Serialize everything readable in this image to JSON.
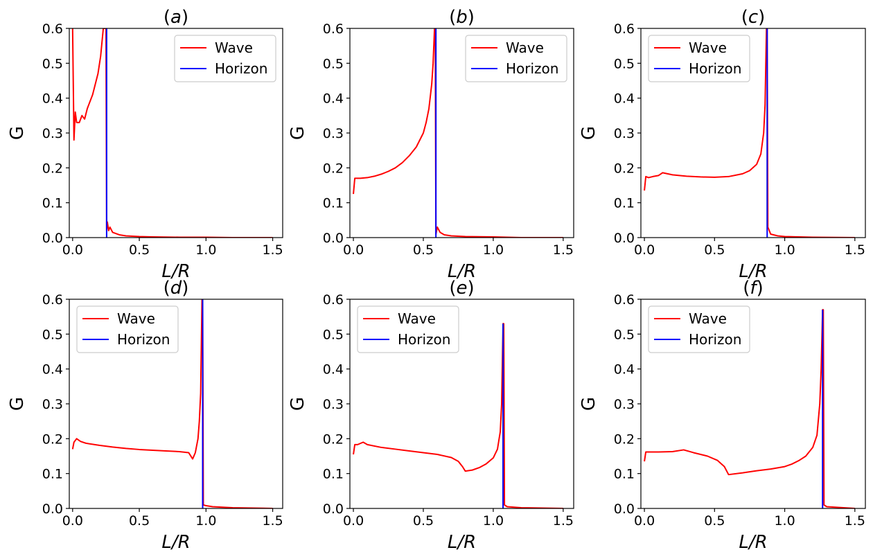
{
  "figure": {
    "colors": {
      "wave": "#ff0000",
      "horizon": "#0000ff"
    }
  },
  "chart_data": [
    {
      "type": "line",
      "title": "(a)",
      "xlabel": "L/R",
      "ylabel": "G",
      "xlim": [
        -0.025,
        1.575
      ],
      "ylim": [
        0,
        0.6
      ],
      "xticks": [
        "0.0",
        "0.5",
        "1.0",
        "1.5"
      ],
      "yticks": [
        "0.0",
        "0.1",
        "0.2",
        "0.3",
        "0.4",
        "0.5",
        "0.6"
      ],
      "legend": {
        "position": "top-right",
        "entries": [
          "Wave",
          "Horizon"
        ]
      },
      "grid": false,
      "series": [
        {
          "name": "Wave",
          "color": "#ff0000",
          "x": [
            0.0,
            0.01,
            0.02,
            0.03,
            0.05,
            0.07,
            0.09,
            0.11,
            0.13,
            0.15,
            0.17,
            0.19,
            0.21,
            0.23,
            0.25,
            0.255,
            0.26,
            0.27,
            0.28,
            0.3,
            0.35,
            0.4,
            0.5,
            0.6,
            0.8,
            1.0,
            1.2,
            1.5
          ],
          "y": [
            0.6,
            0.28,
            0.36,
            0.33,
            0.33,
            0.35,
            0.34,
            0.37,
            0.39,
            0.41,
            0.44,
            0.47,
            0.52,
            0.6,
            0.6,
            0.02,
            0.045,
            0.02,
            0.03,
            0.015,
            0.008,
            0.005,
            0.003,
            0.002,
            0.001,
            0.001,
            0.0,
            0.0
          ]
        },
        {
          "name": "Horizon",
          "color": "#0000ff",
          "x": [
            0.25,
            0.25,
            0.255,
            0.255
          ],
          "y": [
            0.6,
            0.6,
            0.6,
            0.0
          ]
        }
      ]
    },
    {
      "type": "line",
      "title": "(b)",
      "xlabel": "L/R",
      "ylabel": "G",
      "xlim": [
        -0.025,
        1.575
      ],
      "ylim": [
        0,
        0.6
      ],
      "xticks": [
        "0.0",
        "0.5",
        "1.0",
        "1.5"
      ],
      "yticks": [
        "0.0",
        "0.1",
        "0.2",
        "0.3",
        "0.4",
        "0.5",
        "0.6"
      ],
      "legend": {
        "position": "top-right",
        "entries": [
          "Wave",
          "Horizon"
        ]
      },
      "grid": false,
      "series": [
        {
          "name": "Wave",
          "color": "#ff0000",
          "x": [
            0.0,
            0.01,
            0.05,
            0.1,
            0.15,
            0.2,
            0.25,
            0.3,
            0.35,
            0.4,
            0.45,
            0.5,
            0.52,
            0.54,
            0.56,
            0.57,
            0.58,
            0.585,
            0.59,
            0.6,
            0.62,
            0.65,
            0.7,
            0.8,
            1.0,
            1.2,
            1.5
          ],
          "y": [
            0.125,
            0.17,
            0.17,
            0.172,
            0.176,
            0.182,
            0.19,
            0.2,
            0.215,
            0.235,
            0.26,
            0.3,
            0.33,
            0.37,
            0.44,
            0.5,
            0.6,
            0.6,
            0.01,
            0.03,
            0.015,
            0.008,
            0.005,
            0.003,
            0.002,
            0.0,
            0.0
          ]
        },
        {
          "name": "Horizon",
          "color": "#0000ff",
          "x": [
            0.59,
            0.59
          ],
          "y": [
            0.6,
            0.0
          ]
        }
      ]
    },
    {
      "type": "line",
      "title": "(c)",
      "xlabel": "L/R",
      "ylabel": "G",
      "xlim": [
        -0.025,
        1.575
      ],
      "ylim": [
        0,
        0.6
      ],
      "xticks": [
        "0.0",
        "0.5",
        "1.0",
        "1.5"
      ],
      "yticks": [
        "0.0",
        "0.1",
        "0.2",
        "0.3",
        "0.4",
        "0.5",
        "0.6"
      ],
      "legend": {
        "position": "top-left",
        "entries": [
          "Wave",
          "Horizon"
        ]
      },
      "grid": false,
      "series": [
        {
          "name": "Wave",
          "color": "#ff0000",
          "x": [
            0.0,
            0.01,
            0.03,
            0.06,
            0.1,
            0.13,
            0.2,
            0.3,
            0.4,
            0.5,
            0.6,
            0.7,
            0.75,
            0.8,
            0.83,
            0.85,
            0.86,
            0.87,
            0.875,
            0.88,
            0.9,
            0.95,
            1.0,
            1.2,
            1.5
          ],
          "y": [
            0.135,
            0.175,
            0.172,
            0.175,
            0.178,
            0.186,
            0.18,
            0.176,
            0.174,
            0.173,
            0.175,
            0.183,
            0.192,
            0.21,
            0.24,
            0.3,
            0.38,
            0.6,
            0.6,
            0.03,
            0.01,
            0.005,
            0.003,
            0.001,
            0.0
          ]
        },
        {
          "name": "Horizon",
          "color": "#0000ff",
          "x": [
            0.875,
            0.875
          ],
          "y": [
            0.6,
            0.0
          ]
        }
      ]
    },
    {
      "type": "line",
      "title": "(d)",
      "xlabel": "L/R",
      "ylabel": "G",
      "xlim": [
        -0.025,
        1.575
      ],
      "ylim": [
        0,
        0.6
      ],
      "xticks": [
        "0.0",
        "0.5",
        "1.0",
        "1.5"
      ],
      "yticks": [
        "0.0",
        "0.1",
        "0.2",
        "0.3",
        "0.4",
        "0.5",
        "0.6"
      ],
      "legend": {
        "position": "top-left",
        "entries": [
          "Wave",
          "Horizon"
        ]
      },
      "grid": false,
      "series": [
        {
          "name": "Wave",
          "color": "#ff0000",
          "x": [
            0.0,
            0.01,
            0.03,
            0.06,
            0.1,
            0.2,
            0.3,
            0.4,
            0.5,
            0.6,
            0.7,
            0.8,
            0.87,
            0.9,
            0.92,
            0.94,
            0.95,
            0.96,
            0.97,
            0.975,
            0.98,
            1.0,
            1.05,
            1.2,
            1.5
          ],
          "y": [
            0.17,
            0.19,
            0.2,
            0.192,
            0.187,
            0.181,
            0.176,
            0.172,
            0.169,
            0.167,
            0.165,
            0.163,
            0.16,
            0.142,
            0.16,
            0.2,
            0.25,
            0.33,
            0.6,
            0.6,
            0.01,
            0.008,
            0.005,
            0.002,
            0.0
          ]
        },
        {
          "name": "Horizon",
          "color": "#0000ff",
          "x": [
            0.975,
            0.975
          ],
          "y": [
            0.6,
            0.0
          ]
        }
      ]
    },
    {
      "type": "line",
      "title": "(e)",
      "xlabel": "L/R",
      "ylabel": "G",
      "xlim": [
        -0.025,
        1.575
      ],
      "ylim": [
        0,
        0.6
      ],
      "xticks": [
        "0.0",
        "0.5",
        "1.0",
        "1.5"
      ],
      "yticks": [
        "0.0",
        "0.1",
        "0.2",
        "0.3",
        "0.4",
        "0.5",
        "0.6"
      ],
      "legend": {
        "position": "top-left",
        "entries": [
          "Wave",
          "Horizon"
        ]
      },
      "grid": false,
      "series": [
        {
          "name": "Wave",
          "color": "#ff0000",
          "x": [
            0.0,
            0.01,
            0.03,
            0.07,
            0.1,
            0.2,
            0.3,
            0.4,
            0.5,
            0.6,
            0.7,
            0.75,
            0.78,
            0.8,
            0.85,
            0.9,
            0.95,
            1.0,
            1.03,
            1.05,
            1.06,
            1.07,
            1.075,
            1.08,
            1.1,
            1.2,
            1.5
          ],
          "y": [
            0.155,
            0.183,
            0.183,
            0.19,
            0.183,
            0.175,
            0.17,
            0.165,
            0.16,
            0.155,
            0.146,
            0.135,
            0.12,
            0.107,
            0.11,
            0.117,
            0.128,
            0.145,
            0.17,
            0.22,
            0.3,
            0.53,
            0.53,
            0.01,
            0.005,
            0.002,
            0.0
          ]
        },
        {
          "name": "Horizon",
          "color": "#0000ff",
          "x": [
            1.07,
            1.07
          ],
          "y": [
            0.53,
            0.0
          ]
        }
      ]
    },
    {
      "type": "line",
      "title": "(f)",
      "xlabel": "L/R",
      "ylabel": "G",
      "xlim": [
        -0.025,
        1.575
      ],
      "ylim": [
        0,
        0.6
      ],
      "xticks": [
        "0.0",
        "0.5",
        "1.0",
        "1.5"
      ],
      "yticks": [
        "0.0",
        "0.1",
        "0.2",
        "0.3",
        "0.4",
        "0.5",
        "0.6"
      ],
      "legend": {
        "position": "top-left",
        "entries": [
          "Wave",
          "Horizon"
        ]
      },
      "grid": false,
      "series": [
        {
          "name": "Wave",
          "color": "#ff0000",
          "x": [
            0.0,
            0.01,
            0.05,
            0.1,
            0.2,
            0.28,
            0.35,
            0.45,
            0.52,
            0.57,
            0.6,
            0.7,
            0.8,
            0.9,
            1.0,
            1.05,
            1.1,
            1.15,
            1.2,
            1.23,
            1.25,
            1.26,
            1.27,
            1.275,
            1.28,
            1.3,
            1.5
          ],
          "y": [
            0.135,
            0.162,
            0.162,
            0.162,
            0.163,
            0.168,
            0.16,
            0.15,
            0.138,
            0.12,
            0.097,
            0.102,
            0.108,
            0.113,
            0.12,
            0.127,
            0.137,
            0.15,
            0.175,
            0.21,
            0.3,
            0.4,
            0.57,
            0.57,
            0.01,
            0.005,
            0.0
          ]
        },
        {
          "name": "Horizon",
          "color": "#0000ff",
          "x": [
            1.27,
            1.27
          ],
          "y": [
            0.57,
            0.0
          ]
        }
      ]
    }
  ]
}
